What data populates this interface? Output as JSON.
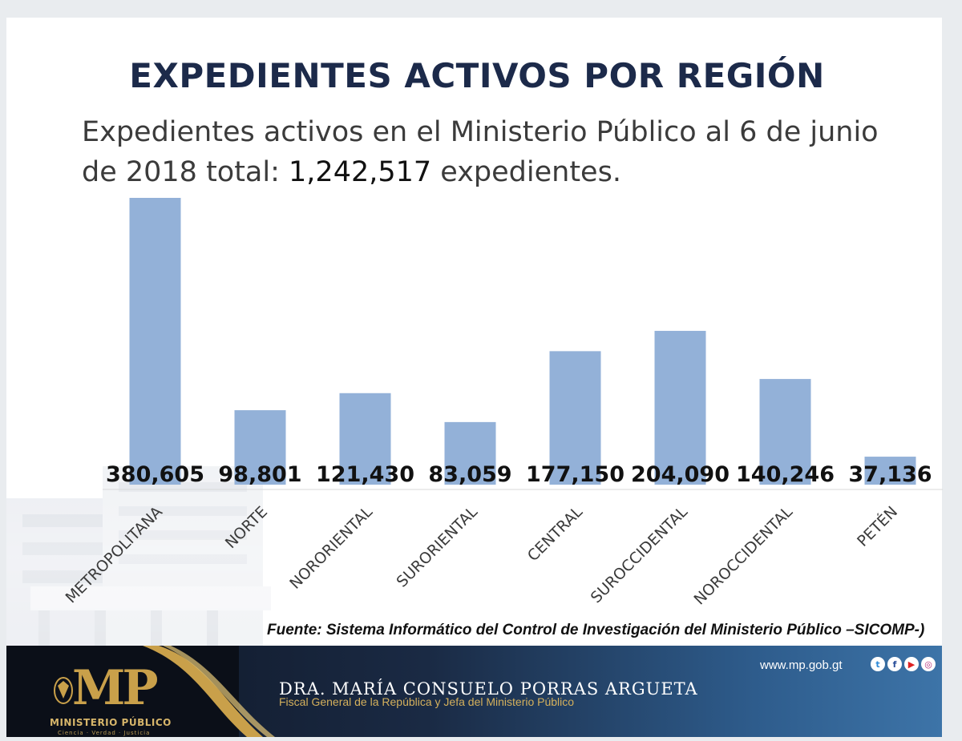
{
  "slide": {
    "title": "EXPEDIENTES ACTIVOS POR REGIÓN",
    "subtitle_part1": "Expedientes activos en el Ministerio Público al 6 de junio de 2018 total: ",
    "subtitle_total": "1,242,517",
    "subtitle_part2": " expedientes.",
    "source": "Fuente: Sistema Informático del Control de Investigación del Ministerio Público –SICOMP-)"
  },
  "chart_data": {
    "type": "bar",
    "title": "",
    "categories": [
      "METROPOLITANA",
      "NORTE",
      "NORORIENTAL",
      "SURORIENTAL",
      "CENTRAL",
      "SUROCCIDENTAL",
      "NOROCCIDENTAL",
      "PETÉN"
    ],
    "values": [
      380605,
      98801,
      121430,
      83059,
      177150,
      204090,
      140246,
      37136
    ],
    "value_labels": [
      "380,605",
      "98,801",
      "121,430",
      "83,059",
      "177,150",
      "204,090",
      "140,246",
      "37,136"
    ],
    "xlabel": "",
    "ylabel": "",
    "ylim": [
      0,
      380605
    ],
    "bar_color": "#93b1d8",
    "grid": false
  },
  "footer": {
    "logo_letters": "MP",
    "logo_name": "MINISTERIO PÚBLICO",
    "logo_motto": "Ciencia · Verdad · Justicia",
    "fiscal_name": "DRA. MARÍA CONSUELO PORRAS ARGUETA",
    "fiscal_role": "Fiscal General de la República y Jefa del Ministerio Público",
    "website": "www.mp.gob.gt",
    "social_icons": [
      "twitter-icon",
      "facebook-icon",
      "youtube-icon",
      "instagram-icon"
    ]
  }
}
